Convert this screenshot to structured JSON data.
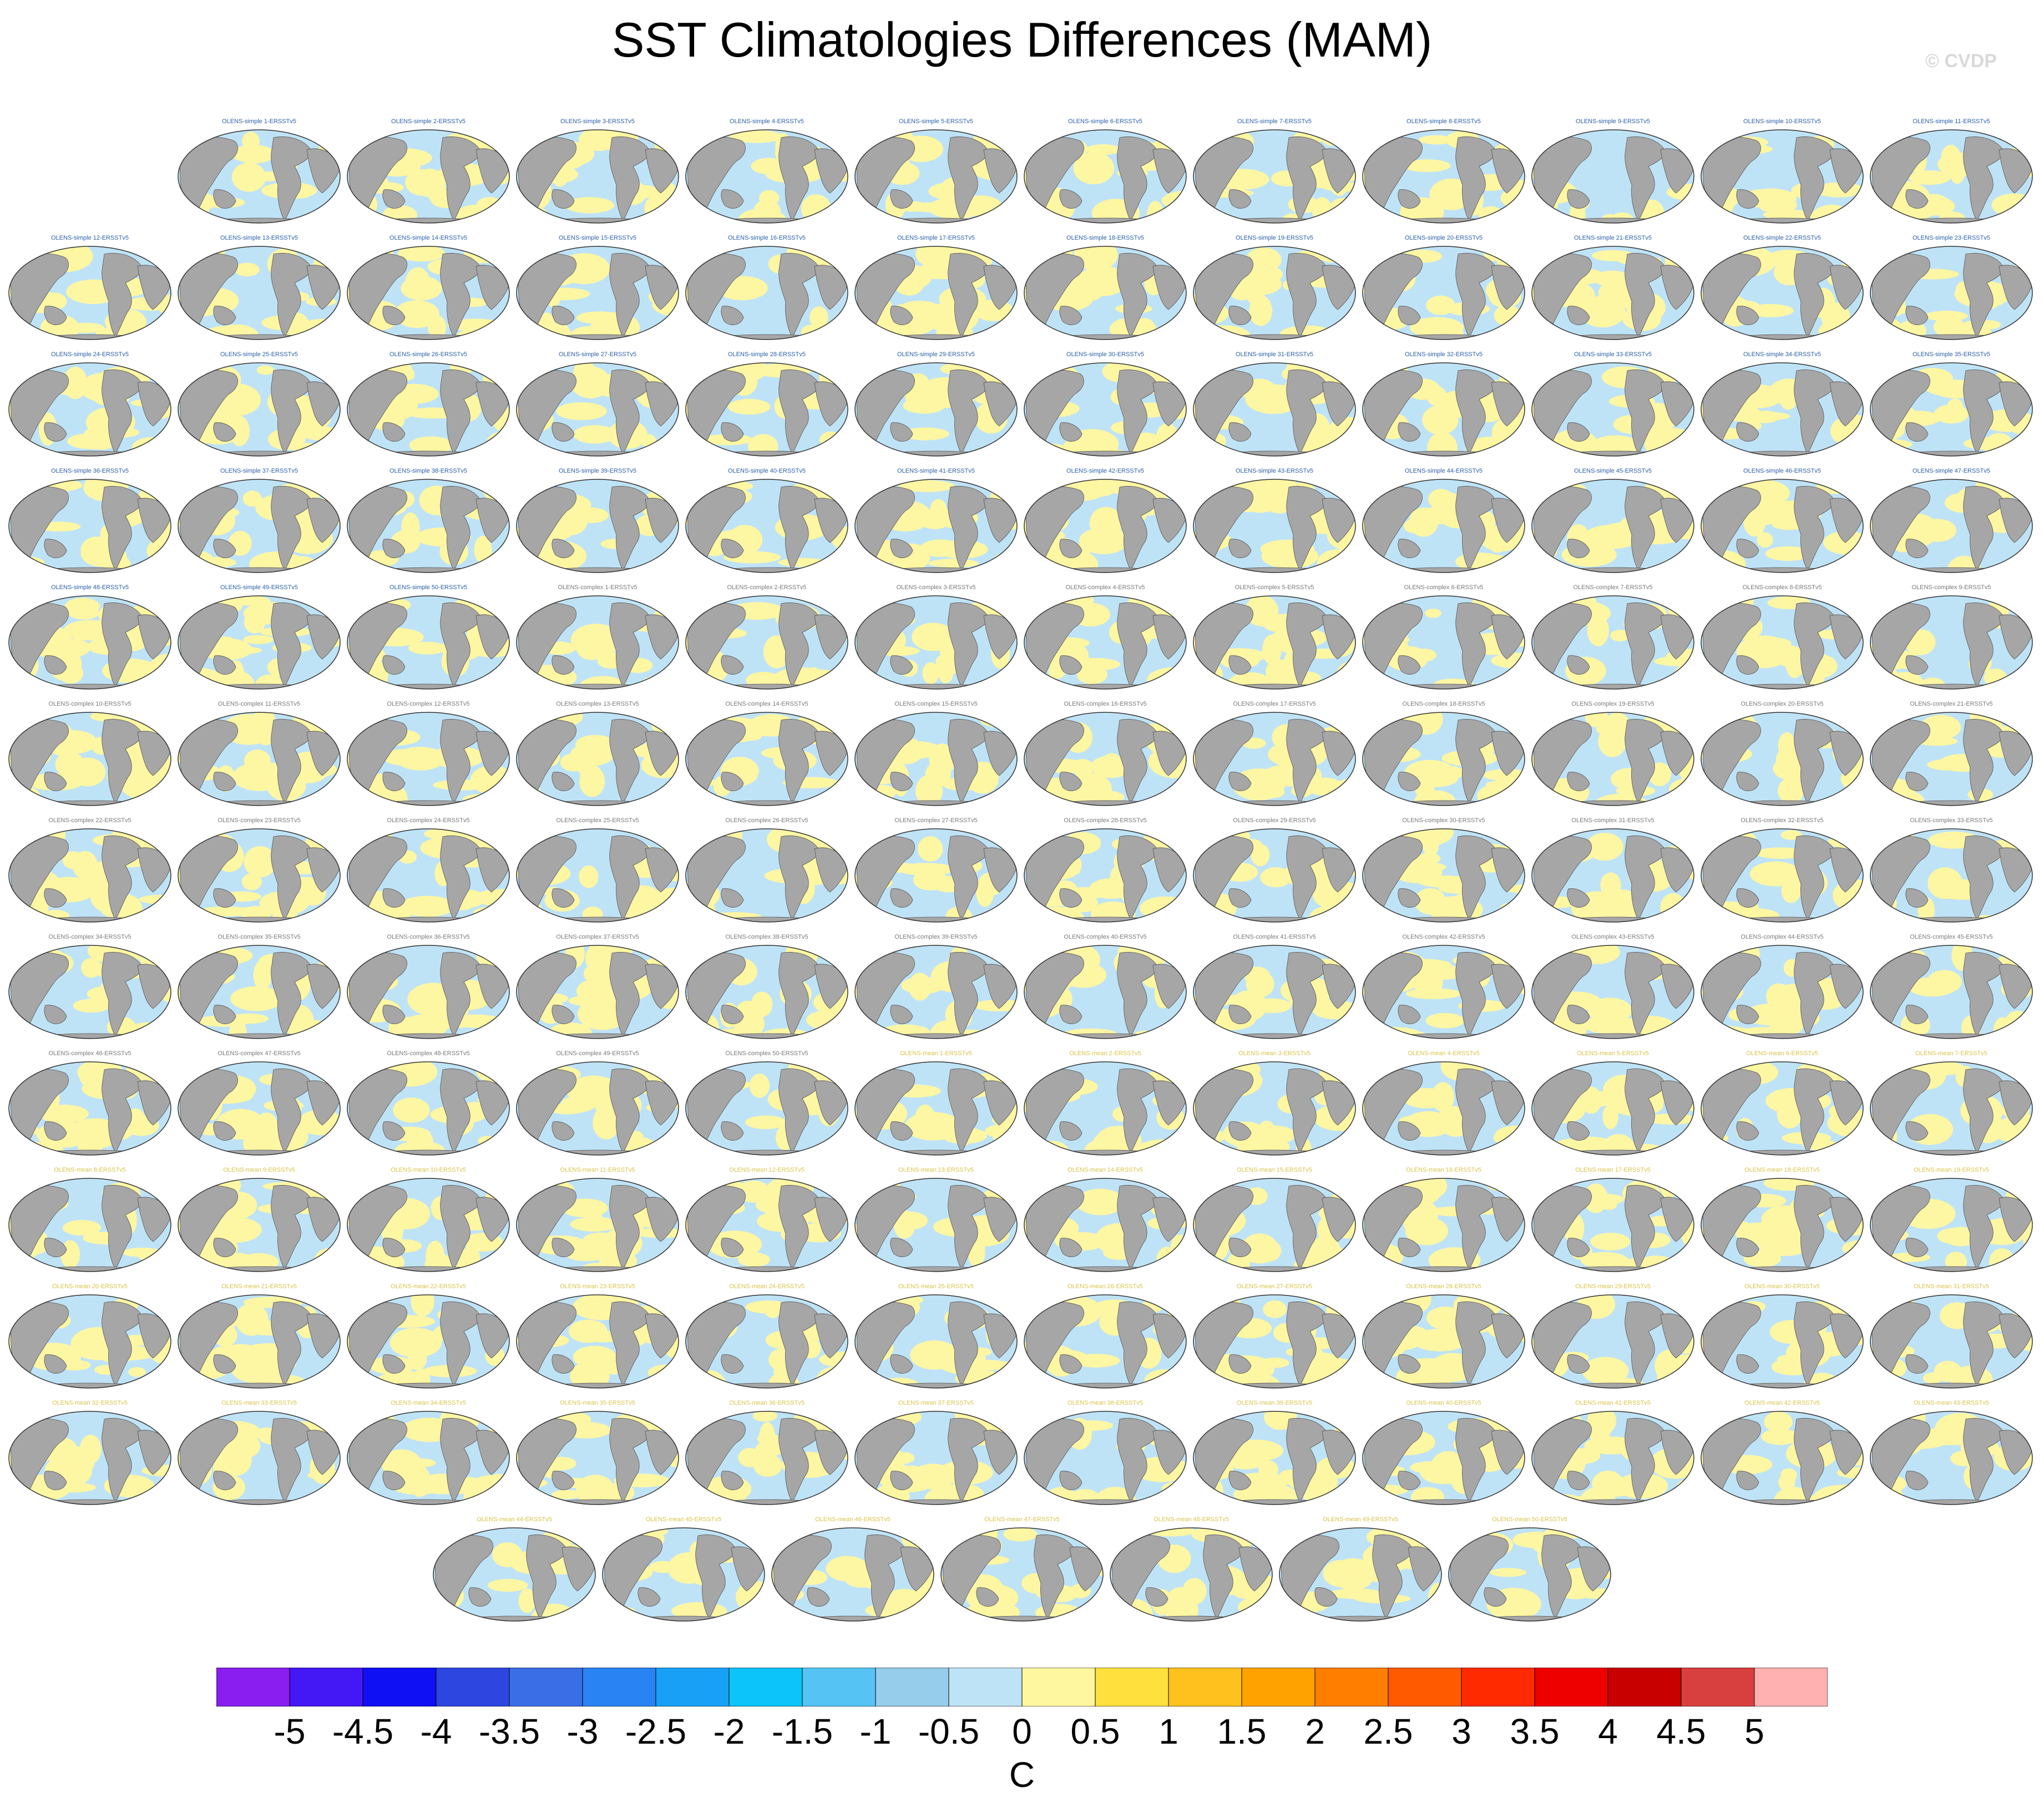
{
  "title": "SST Climatologies Differences (MAM)",
  "watermark": "© CVDP",
  "panel_title_suffix": "-ERSSTv5",
  "groups": [
    {
      "prefix": "OLENS-simple ",
      "count": 50,
      "title_color": "#2b5fa8"
    },
    {
      "prefix": "OLENS-complex ",
      "count": 50,
      "title_color": "#7a7a7a"
    },
    {
      "prefix": "OLENS-mean ",
      "count": 50,
      "title_color": "#d9c34a"
    }
  ],
  "colors": {
    "land": "#a6a6a6",
    "ocean_neg": "#bfe3f6",
    "ocean_pos": "#fdf6a3",
    "coast": "#555555"
  },
  "colorbar": {
    "labels": [
      "-5",
      "-4.5",
      "-4",
      "-3.5",
      "-3",
      "-2.5",
      "-2",
      "-1.5",
      "-1",
      "-0.5",
      "0",
      "0.5",
      "1",
      "1.5",
      "2",
      "2.5",
      "3",
      "3.5",
      "4",
      "4.5",
      "5"
    ],
    "colors": [
      "#8a1ef0",
      "#4318f5",
      "#1010f5",
      "#2e46e0",
      "#3a6ee6",
      "#2a83f2",
      "#18a0f6",
      "#0cc4fa",
      "#55c4f4",
      "#96cdeb",
      "#bfe3f6",
      "#fff7a0",
      "#ffe03c",
      "#ffc11e",
      "#ffa200",
      "#ff7e00",
      "#ff5a00",
      "#ff2a00",
      "#ee0000",
      "#c80000",
      "#d84040",
      "#ffb1b1"
    ],
    "units": "C"
  }
}
